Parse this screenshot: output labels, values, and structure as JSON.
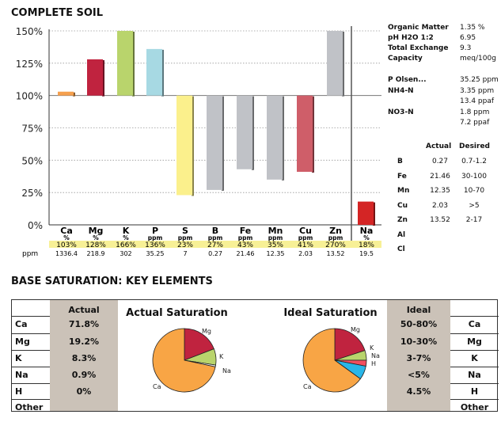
{
  "headings": {
    "soil": "COMPLETE SOIL",
    "base": "BASE SATURATION: KEY ELEMENTS"
  },
  "chart_data": [
    {
      "type": "bar",
      "title": "COMPLETE SOIL",
      "ylim": [
        0,
        150
      ],
      "y_ticks": [
        "0%",
        "25%",
        "50%",
        "75%",
        "100%",
        "125%",
        "150%"
      ],
      "grid": "dotted horizontal",
      "categories": [
        "Ca",
        "Mg",
        "K",
        "P",
        "S",
        "B",
        "Fe",
        "Mn",
        "Cu",
        "Zn",
        "Na"
      ],
      "units": [
        "%",
        "%",
        "%",
        "ppm",
        "ppm",
        "ppm",
        "ppm",
        "ppm",
        "ppm",
        "ppm",
        "%"
      ],
      "values": [
        103,
        128,
        166,
        136,
        23,
        27,
        43,
        35,
        41,
        270,
        18
      ],
      "value_labels": [
        "103%",
        "128%",
        "166%",
        "136%",
        "23%",
        "27%",
        "43%",
        "35%",
        "41%",
        "270%",
        "18%"
      ],
      "ppm_label": "ppm",
      "ppm": [
        "1336.4",
        "218.9",
        "302",
        "35.25",
        "7",
        "0.27",
        "21.46",
        "12.35",
        "2.03",
        "13.52",
        "19.5"
      ],
      "colors": [
        "#f5a04e",
        "#c0233f",
        "#b9d46c",
        "#a7d9e3",
        "#fbf08c",
        "#c0c2c7",
        "#c0c2c7",
        "#c0c2c7",
        "#cf5e69",
        "#c0c2c7",
        "#d42525"
      ]
    },
    {
      "type": "pie",
      "title": "Actual Saturation",
      "labels": [
        "Ca",
        "Mg",
        "K",
        "Na",
        "H"
      ],
      "values": [
        71.8,
        19.2,
        8.3,
        0.9,
        0
      ],
      "colors": [
        "#f8a545",
        "#c0233f",
        "#b9d46c",
        "#ececec",
        "#29b6e8"
      ]
    },
    {
      "type": "pie",
      "title": "Ideal Saturation",
      "labels": [
        "Ca",
        "Mg",
        "K",
        "Na",
        "H"
      ],
      "values": [
        65,
        20,
        5,
        3,
        7
      ],
      "colors": [
        "#f8a545",
        "#c0233f",
        "#b9d46c",
        "#f24f5f",
        "#29b6e8"
      ]
    }
  ],
  "soil_info": [
    {
      "label": "Organic Matter",
      "value": "1.35 %"
    },
    {
      "label": "pH H2O 1:2",
      "value": "6.95"
    },
    {
      "label": "Total Exchange",
      "value": "9.3"
    },
    {
      "label": "Capacity",
      "value": "meq/100g"
    },
    {
      "label": "P Olsen...",
      "value": "35.25 ppm"
    },
    {
      "label": "NH4-N",
      "value": "3.35 ppm"
    },
    {
      "label": "",
      "value": "13.4 ppaf"
    },
    {
      "label": "NO3-N",
      "value": "1.8 ppm"
    },
    {
      "label": "",
      "value": "7.2 ppaf"
    }
  ],
  "micro": {
    "header_actual": "Actual",
    "header_desired": "Desired",
    "rows": [
      {
        "el": "B",
        "actual": "0.27",
        "desired": "0.7-1.2"
      },
      {
        "el": "Fe",
        "actual": "21.46",
        "desired": "30-100"
      },
      {
        "el": "Mn",
        "actual": "12.35",
        "desired": "10-70"
      },
      {
        "el": "Cu",
        "actual": "2.03",
        "desired": ">5"
      },
      {
        "el": "Zn",
        "actual": "13.52",
        "desired": "2-17"
      },
      {
        "el": "Al",
        "actual": "",
        "desired": ""
      },
      {
        "el": "Cl",
        "actual": "",
        "desired": ""
      }
    ]
  },
  "base_saturation": {
    "actual_header": "Actual",
    "ideal_header": "Ideal",
    "rows": [
      {
        "el": "Ca",
        "actual": "71.8%",
        "ideal": "50-80%"
      },
      {
        "el": "Mg",
        "actual": "19.2%",
        "ideal": "10-30%"
      },
      {
        "el": "K",
        "actual": "8.3%",
        "ideal": "3-7%"
      },
      {
        "el": "Na",
        "actual": "0.9%",
        "ideal": "<5%"
      },
      {
        "el": "H",
        "actual": "0%",
        "ideal": "4.5%"
      },
      {
        "el": "Other",
        "actual": "",
        "ideal": ""
      }
    ]
  }
}
